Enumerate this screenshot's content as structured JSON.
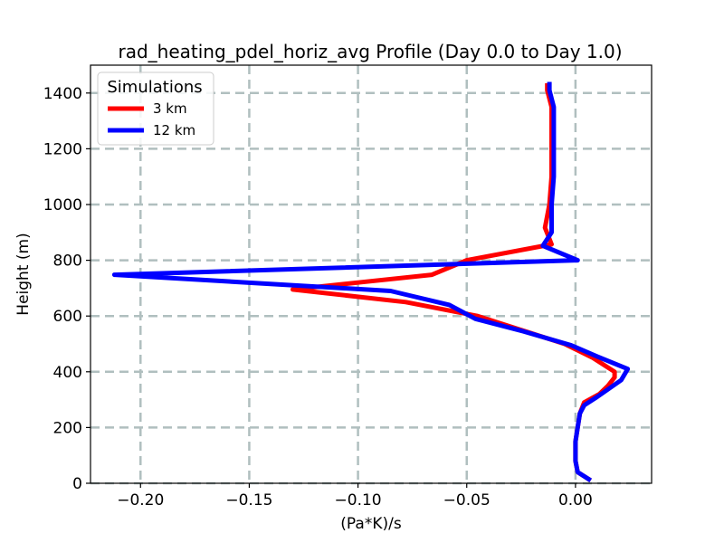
{
  "chart_data": {
    "type": "line",
    "title": "rad_heating_pdel_horiz_avg Profile (Day 0.0 to Day 1.0)",
    "xlabel": "(Pa*K)/s",
    "ylabel": "Height (m)",
    "xlim": [
      -0.223,
      0.035
    ],
    "ylim": [
      0,
      1500
    ],
    "xticks": [
      -0.2,
      -0.15,
      -0.1,
      -0.05,
      0.0
    ],
    "xtick_labels": [
      "−0.20",
      "−0.15",
      "−0.10",
      "−0.05",
      "0.00"
    ],
    "yticks": [
      0,
      200,
      400,
      600,
      800,
      1000,
      1200,
      1400
    ],
    "ytick_labels": [
      "0",
      "200",
      "400",
      "600",
      "800",
      "1000",
      "1200",
      "1400"
    ],
    "grid": true,
    "legend": {
      "title": "Simulations",
      "position": "top-left"
    },
    "series": [
      {
        "name": "3 km",
        "color": "#ff0000",
        "points": [
          [
            0.007,
            10
          ],
          [
            0.001,
            40
          ],
          [
            0.0,
            80
          ],
          [
            0.0,
            150
          ],
          [
            0.002,
            250
          ],
          [
            0.004,
            290
          ],
          [
            0.011,
            320
          ],
          [
            0.015,
            350
          ],
          [
            0.018,
            380
          ],
          [
            0.018,
            400
          ],
          [
            0.008,
            450
          ],
          [
            -0.005,
            500
          ],
          [
            -0.025,
            550
          ],
          [
            -0.045,
            600
          ],
          [
            -0.078,
            650
          ],
          [
            -0.13,
            695
          ],
          [
            -0.1,
            720
          ],
          [
            -0.066,
            748
          ],
          [
            -0.05,
            800
          ],
          [
            -0.011,
            857
          ],
          [
            -0.014,
            917
          ],
          [
            -0.012,
            1000
          ],
          [
            -0.011,
            1100
          ],
          [
            -0.011,
            1200
          ],
          [
            -0.011,
            1300
          ],
          [
            -0.011,
            1350
          ],
          [
            -0.013,
            1410
          ],
          [
            -0.013,
            1435
          ]
        ]
      },
      {
        "name": "12 km",
        "color": "#0000ff",
        "points": [
          [
            0.007,
            10
          ],
          [
            0.001,
            40
          ],
          [
            0.0,
            80
          ],
          [
            0.0,
            150
          ],
          [
            0.002,
            250
          ],
          [
            0.004,
            280
          ],
          [
            0.01,
            310
          ],
          [
            0.021,
            370
          ],
          [
            0.024,
            410
          ],
          [
            0.01,
            455
          ],
          [
            -0.002,
            495
          ],
          [
            -0.024,
            545
          ],
          [
            -0.046,
            590
          ],
          [
            -0.058,
            640
          ],
          [
            -0.085,
            690
          ],
          [
            -0.212,
            748
          ],
          [
            0.001,
            800
          ],
          [
            -0.015,
            852
          ],
          [
            -0.011,
            900
          ],
          [
            -0.011,
            1000
          ],
          [
            -0.01,
            1100
          ],
          [
            -0.01,
            1200
          ],
          [
            -0.01,
            1300
          ],
          [
            -0.01,
            1350
          ],
          [
            -0.012,
            1410
          ],
          [
            -0.012,
            1440
          ]
        ]
      }
    ]
  }
}
